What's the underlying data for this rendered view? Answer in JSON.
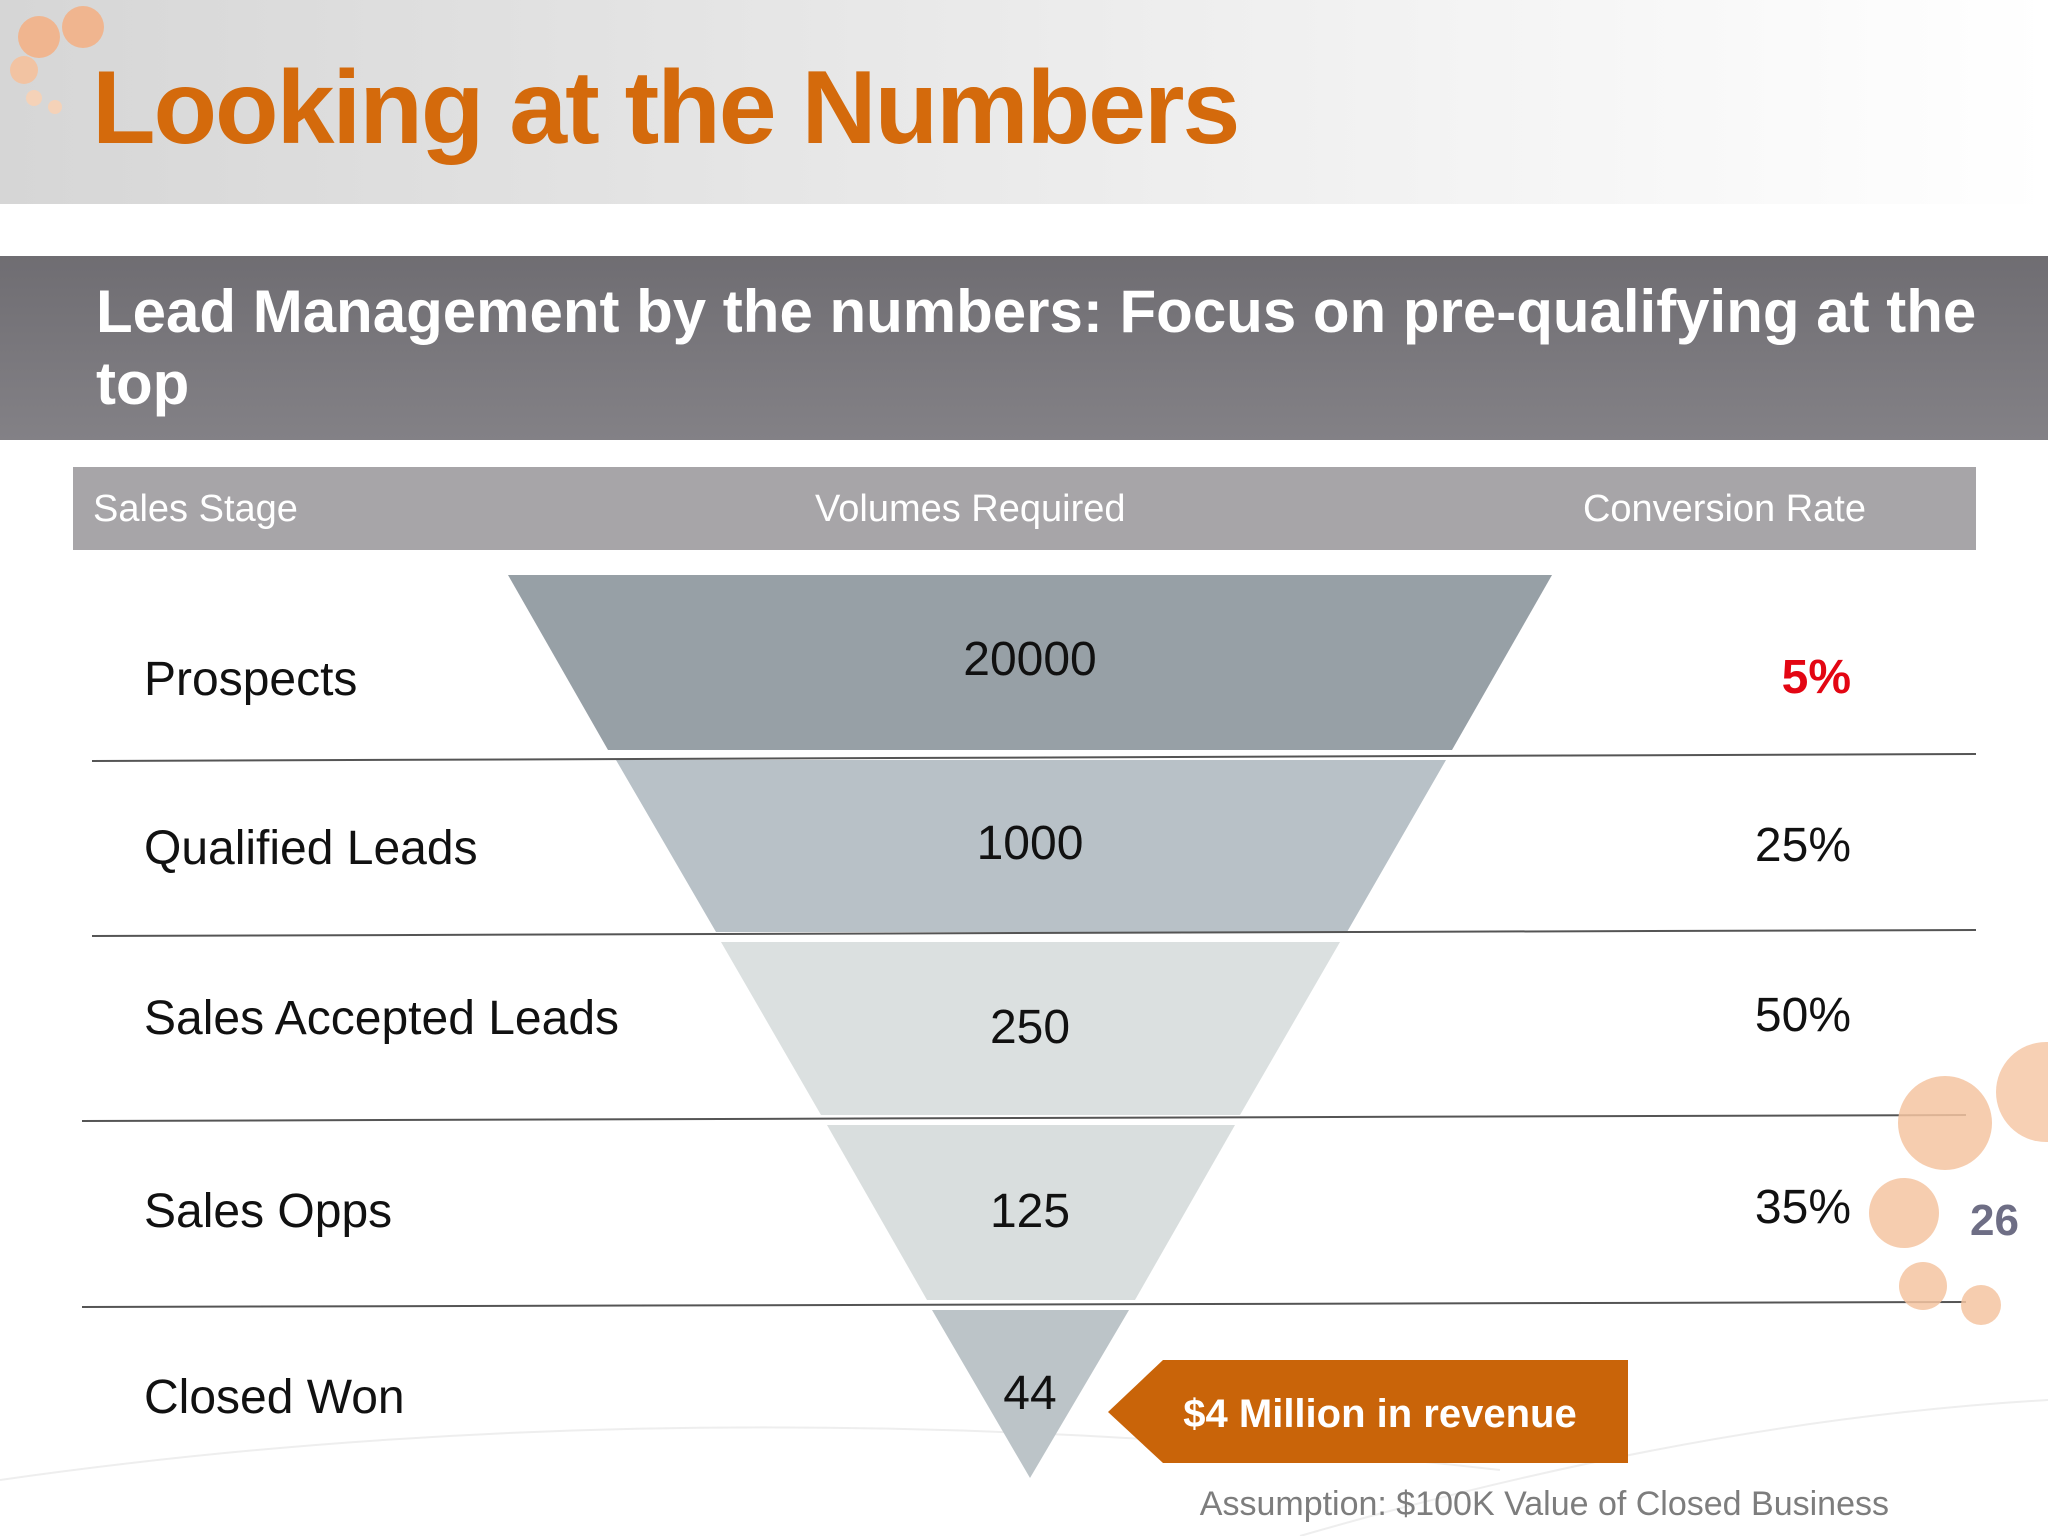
{
  "slide": {
    "title": "Looking at the Numbers",
    "subtitle": "Lead Management by the numbers: Focus on pre-qualifying at the top",
    "page_number": "26"
  },
  "table_header": {
    "stage": "Sales Stage",
    "volume": "Volumes Required",
    "conversion": "Conversion Rate"
  },
  "rows": [
    {
      "stage": "Prospects",
      "volume": "20000",
      "conversion": "5%"
    },
    {
      "stage": "Qualified Leads",
      "volume": "1000",
      "conversion": "25%"
    },
    {
      "stage": "Sales Accepted Leads",
      "volume": "250",
      "conversion": "50%"
    },
    {
      "stage": "Sales Opps",
      "volume": "125",
      "conversion": "35%"
    },
    {
      "stage": "Closed Won",
      "volume": "44",
      "conversion": ""
    }
  ],
  "callout": "$4 Million in revenue",
  "assumption": "Assumption: $100K Value of Closed Business",
  "colors": {
    "title": "#d46a0c",
    "highlight_rate": "#e30613",
    "callout_fill": "#c96409",
    "funnel_segments": [
      "#97a0a6",
      "#b8c1c7",
      "#dbe0e0",
      "#d9dede",
      "#bcc4c8"
    ]
  }
}
